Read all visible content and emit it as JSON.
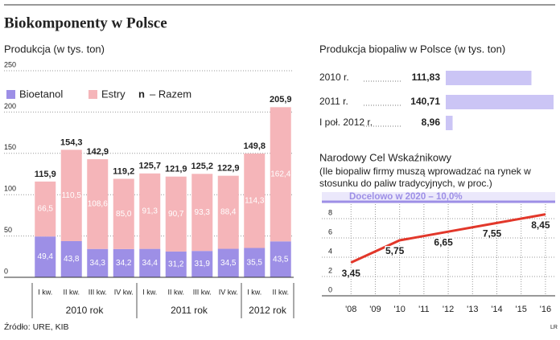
{
  "title": "Biokomponenty w Polsce",
  "source": "Źródło: URE, KIB",
  "credit": "LR",
  "chart_data": [
    {
      "type": "stacked_bar",
      "subtitle": "Produkcja (w tys. ton)",
      "categories": [
        "I kw.",
        "II kw.",
        "III kw.",
        "IV kw.",
        "I kw.",
        "II kw.",
        "III kw.",
        "IV kw.",
        "I kw.",
        "II kw."
      ],
      "groups": [
        {
          "label": "2010 rok",
          "count": 4
        },
        {
          "label": "2011 rok",
          "count": 4
        },
        {
          "label": "2012 rok",
          "count": 2
        }
      ],
      "series": [
        {
          "name": "Bioetanol",
          "color": "#9d8fe6",
          "values": [
            49.4,
            43.8,
            34.3,
            34.2,
            34.4,
            31.2,
            31.9,
            34.5,
            35.5,
            43.5
          ],
          "value_labels": [
            "49,4",
            "43,8",
            "34,3",
            "34,2",
            "34,4",
            "31,2",
            "31,9",
            "34,5",
            "35,5",
            "43,5"
          ]
        },
        {
          "name": "Estry",
          "color": "#f5b5b9",
          "values": [
            66.5,
            110.5,
            108.6,
            85.0,
            91.3,
            90.7,
            93.3,
            88.4,
            114.3,
            162.4
          ],
          "value_labels": [
            "66,5",
            "110,5",
            "108,6",
            "85,0",
            "91,3",
            "90,7",
            "93,3",
            "88,4",
            "114,3",
            "162,4"
          ]
        }
      ],
      "totals": {
        "marker": "n",
        "name": "– Razem",
        "values": [
          115.9,
          154.3,
          142.9,
          119.2,
          125.7,
          121.9,
          125.2,
          122.9,
          149.8,
          205.9
        ],
        "value_labels": [
          "115,9",
          "154,3",
          "142,9",
          "119,2",
          "125,7",
          "121,9",
          "125,2",
          "122,9",
          "149,8",
          "205,9"
        ]
      },
      "ylim": [
        0,
        250
      ],
      "yticks": [
        0,
        50,
        100,
        150,
        200,
        250
      ],
      "grid": true
    },
    {
      "type": "hbar",
      "title": "Produkcja biopaliw w Polsce (w tys. ton)",
      "categories": [
        "2010 r.",
        "2011 r.",
        "I poł. 2012 r."
      ],
      "values": [
        111.83,
        140.71,
        8.96
      ],
      "value_labels": [
        "111,83",
        "140,71",
        "8,96"
      ],
      "color": "#cbc5f5"
    },
    {
      "type": "line",
      "title": "Narodowy Cel Wskaźnikowy",
      "subtitle": "(Ile biopaliw firmy muszą wprowadzać na rynek w stosunku do paliw tradycyjnych, w proc.)",
      "x": [
        2008,
        2010,
        2012,
        2014,
        2016
      ],
      "series": [
        {
          "color": "#e2372a",
          "values": [
            3.45,
            5.75,
            6.65,
            7.55,
            8.45
          ],
          "value_labels": [
            "3,45",
            "5,75",
            "6,65",
            "7,55",
            "8,45"
          ]
        }
      ],
      "target": {
        "value": 10,
        "label": "Docelowo w 2020 – 10,0%",
        "color": "#9d8fe6"
      },
      "xlim": [
        2006.8,
        2016.4
      ],
      "xticks": [
        {
          "value": 2008,
          "label": "'08"
        },
        {
          "value": 2009,
          "label": "'09"
        },
        {
          "value": 2010,
          "label": "'10"
        },
        {
          "value": 2011,
          "label": "'11"
        },
        {
          "value": 2012,
          "label": "'12"
        },
        {
          "value": 2013,
          "label": "'13"
        },
        {
          "value": 2014,
          "label": "'14"
        },
        {
          "value": 2015,
          "label": "'15"
        },
        {
          "value": 2016,
          "label": "'16"
        }
      ],
      "ylim": [
        0,
        10
      ],
      "yticks": [
        0,
        2,
        4,
        6,
        8
      ],
      "grid": true
    }
  ]
}
